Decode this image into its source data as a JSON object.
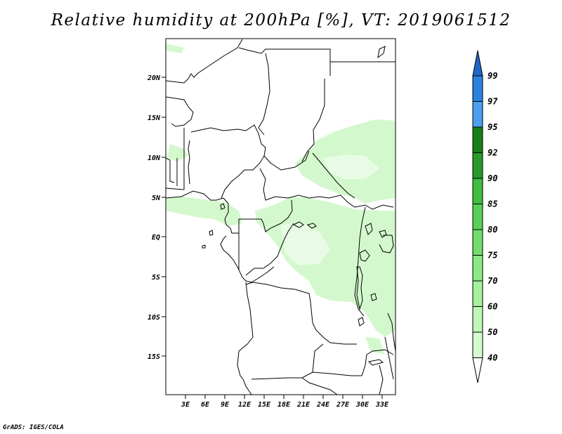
{
  "title": "Relative humidity at 200hPa [%], VT: 2019061512",
  "credit": "GrADS: IGES/COLA",
  "map": {
    "lat_labels": [
      "20N",
      "15N",
      "10N",
      "5N",
      "EQ",
      "5S",
      "10S",
      "15S"
    ],
    "lon_labels": [
      "3E",
      "6E",
      "9E",
      "12E",
      "15E",
      "18E",
      "21E",
      "24E",
      "27E",
      "30E",
      "33E"
    ],
    "lat_range": [
      -20,
      25
    ],
    "lon_range": [
      0,
      35
    ],
    "field": "relative humidity",
    "units": "%"
  },
  "colorbar": {
    "levels": [
      "40",
      "50",
      "60",
      "70",
      "75",
      "80",
      "85",
      "90",
      "92",
      "95",
      "97",
      "99"
    ],
    "colors": [
      "#ffffff",
      "#e6fde3",
      "#d3fbcd",
      "#bdf6b5",
      "#a5f09c",
      "#8ce884",
      "#72dd6c",
      "#58d055",
      "#3ebd3e",
      "#279a2a",
      "#178015",
      "#4aa0ee",
      "#2a82df",
      "#1f66c8"
    ]
  }
}
